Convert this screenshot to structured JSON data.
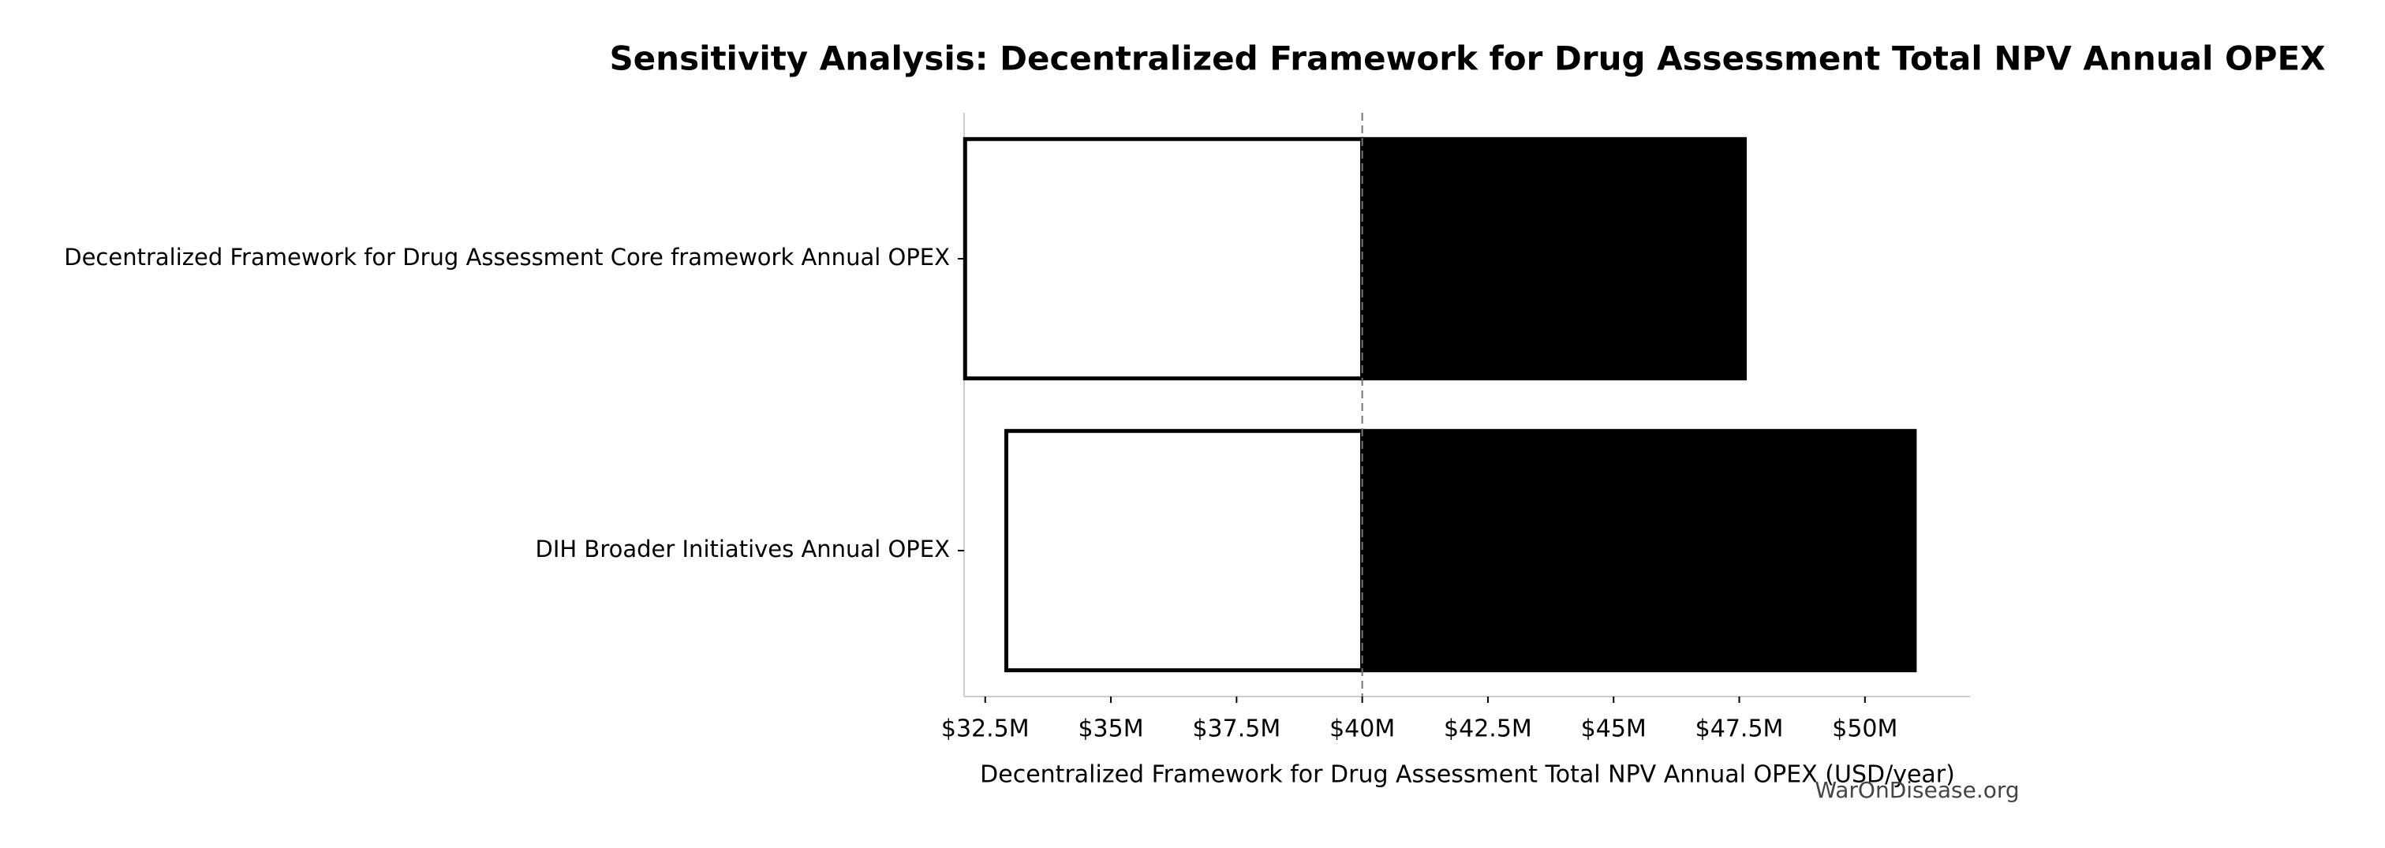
{
  "chart_data": {
    "type": "tornado",
    "title": "Sensitivity Analysis: Decentralized Framework for Drug Assessment Total NPV Annual OPEX",
    "xlabel": "Decentralized Framework for Drug Assessment Total NPV Annual OPEX (USD/year)",
    "watermark": "WarOnDisease.org",
    "categories": [
      "Decentralized Framework for Drug Assessment Core framework Annual OPEX",
      "DIH Broader Initiatives Annual OPEX"
    ],
    "low_values": [
      32100000,
      32920000
    ],
    "high_values": [
      47610000,
      50990000
    ],
    "baseline": 40000000,
    "low_color": "#ffffff",
    "high_color": "#000000",
    "edge_color": "#000000",
    "xlim": [
      32080000,
      52090000
    ],
    "xticks": [
      {
        "value": 32500000,
        "label": "$32.5M"
      },
      {
        "value": 35000000,
        "label": "$35M"
      },
      {
        "value": 37500000,
        "label": "$37.5M"
      },
      {
        "value": 40000000,
        "label": "$40M"
      },
      {
        "value": 42500000,
        "label": "$42.5M"
      },
      {
        "value": 45000000,
        "label": "$45M"
      },
      {
        "value": 47500000,
        "label": "$47.5M"
      },
      {
        "value": 50000000,
        "label": "$50M"
      }
    ]
  }
}
